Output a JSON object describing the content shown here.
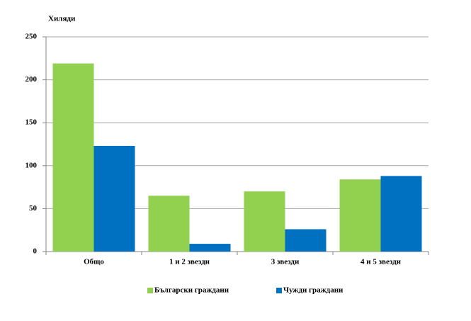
{
  "chart_data": {
    "type": "bar",
    "y_label": "Хиляди",
    "categories": [
      "Общо",
      "1 и 2 звезди",
      "3 звезди",
      "4 и 5 звезди"
    ],
    "series": [
      {
        "name": "Български граждани",
        "color": "#92d050",
        "values": [
          219,
          65,
          70,
          84
        ]
      },
      {
        "name": "Чужди граждани",
        "color": "#0070c0",
        "values": [
          123,
          9,
          26,
          88
        ]
      }
    ],
    "ylim": [
      0,
      250
    ],
    "yticks": [
      0,
      50,
      100,
      150,
      200,
      250
    ],
    "grid": true,
    "legend": "bottom"
  }
}
